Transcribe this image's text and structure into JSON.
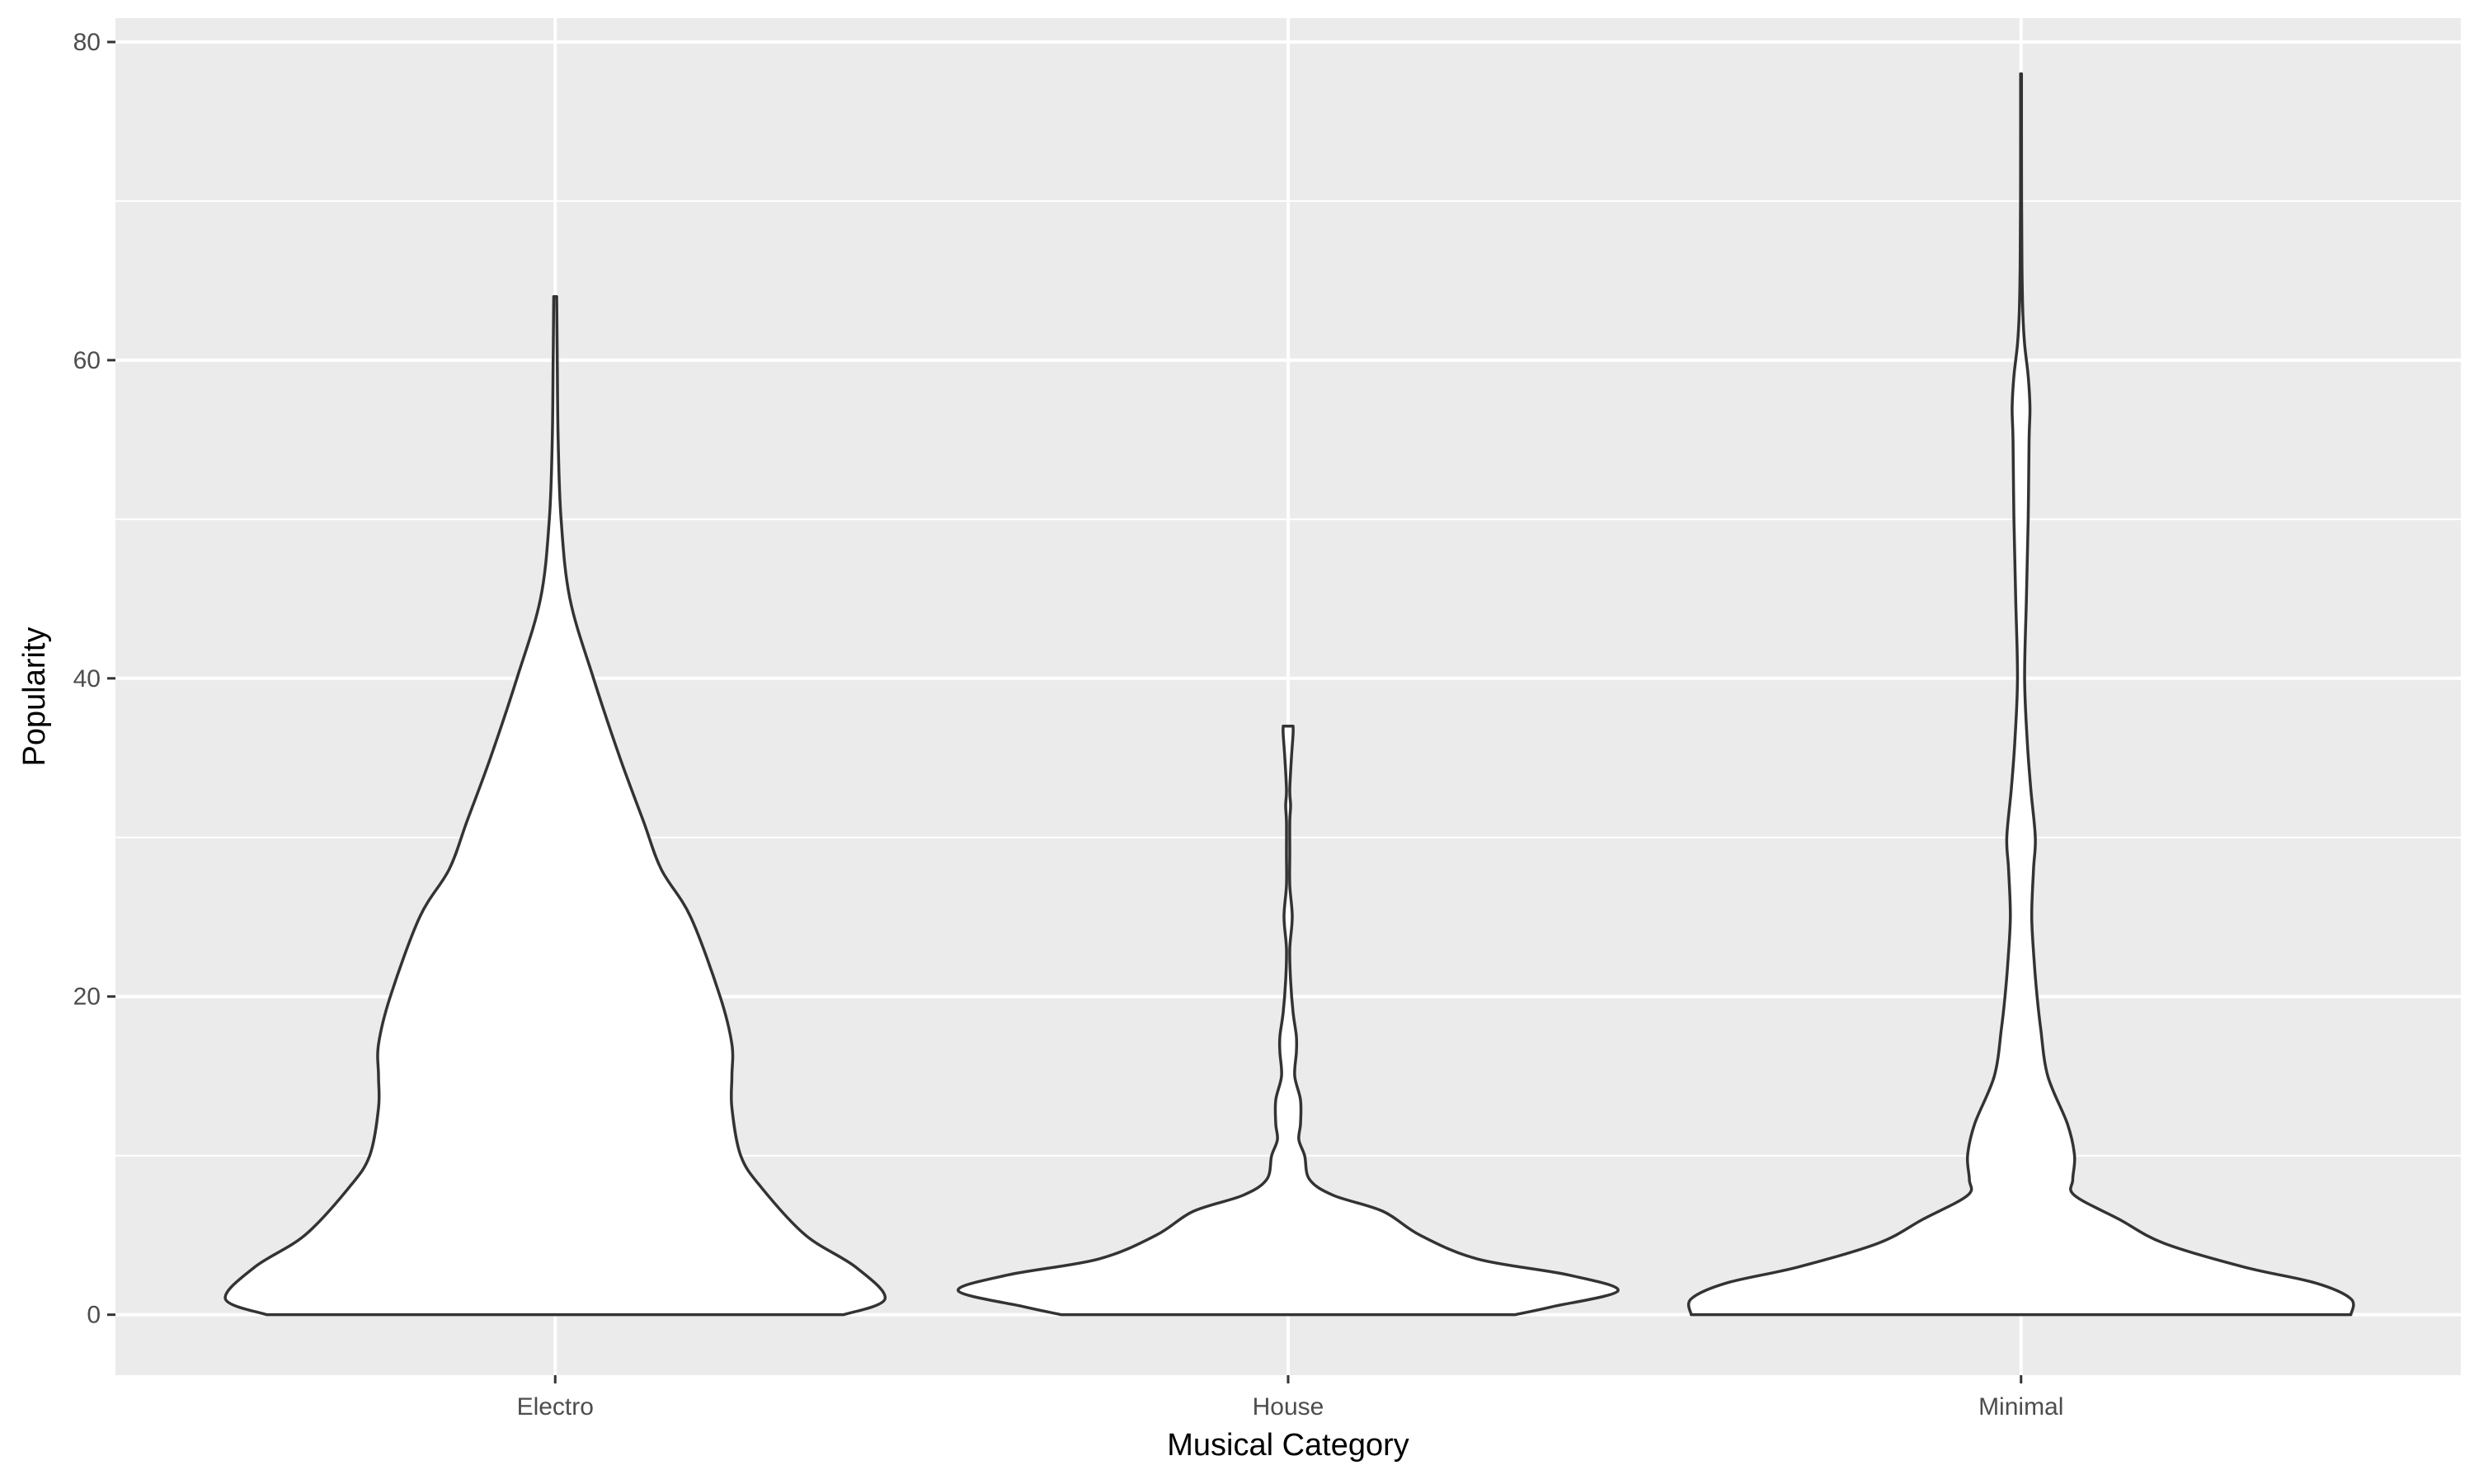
{
  "chart_data": {
    "type": "violin",
    "title": "",
    "xlabel": "Musical Category",
    "ylabel": "Popularity",
    "categories": [
      "Electro",
      "House",
      "Minimal"
    ],
    "ylim": [
      -3.8,
      81.5
    ],
    "yticks": [
      0,
      20,
      40,
      60,
      80
    ],
    "grid": true,
    "legend": "none",
    "colors": {
      "panel_background": "#ebebeb",
      "grid_line": "#ffffff",
      "violin_fill": "#ffffff",
      "violin_outline": "#333333",
      "tick_text": "#4d4d4d",
      "axis_tick": "#333333",
      "axis_title_text": "#000000"
    },
    "series": [
      {
        "category": "Electro",
        "range": [
          0,
          64
        ],
        "density_profile": [
          [
            0,
            0.098
          ],
          [
            1,
            0.112
          ],
          [
            3,
            0.102
          ],
          [
            5,
            0.085
          ],
          [
            8,
            0.07
          ],
          [
            10,
            0.063
          ],
          [
            13,
            0.06
          ],
          [
            15,
            0.06
          ],
          [
            17,
            0.06
          ],
          [
            20,
            0.056
          ],
          [
            25,
            0.046
          ],
          [
            28,
            0.036
          ],
          [
            31,
            0.03
          ],
          [
            35,
            0.022
          ],
          [
            40,
            0.013
          ],
          [
            45,
            0.005
          ],
          [
            50,
            0.002
          ],
          [
            55,
            0.001
          ],
          [
            60,
            0.0007
          ],
          [
            64,
            0.0005
          ]
        ]
      },
      {
        "category": "House",
        "range": [
          0,
          37
        ],
        "density_profile": [
          [
            0,
            0.55
          ],
          [
            0.5,
            0.64
          ],
          [
            1.5,
            0.8
          ],
          [
            2.5,
            0.68
          ],
          [
            3.5,
            0.46
          ],
          [
            5,
            0.32
          ],
          [
            6.5,
            0.23
          ],
          [
            7.5,
            0.11
          ],
          [
            8.5,
            0.052
          ],
          [
            10,
            0.04
          ],
          [
            11,
            0.026
          ],
          [
            12,
            0.03
          ],
          [
            13.5,
            0.03
          ],
          [
            15,
            0.016
          ],
          [
            16.5,
            0.02
          ],
          [
            17.5,
            0.02
          ],
          [
            19,
            0.012
          ],
          [
            21,
            0.006
          ],
          [
            23,
            0.004
          ],
          [
            25,
            0.01
          ],
          [
            27,
            0.004
          ],
          [
            29,
            0.004
          ],
          [
            31,
            0.004
          ],
          [
            32,
            0.006
          ],
          [
            33,
            0.004
          ],
          [
            35,
            0.008
          ],
          [
            36.5,
            0.012
          ],
          [
            37,
            0.012
          ]
        ]
      },
      {
        "category": "Minimal",
        "range": [
          0,
          78
        ],
        "density_profile": [
          [
            0,
            0.37
          ],
          [
            1,
            0.37
          ],
          [
            2,
            0.33
          ],
          [
            3,
            0.25
          ],
          [
            4.5,
            0.16
          ],
          [
            6,
            0.11
          ],
          [
            7.5,
            0.06
          ],
          [
            8.5,
            0.058
          ],
          [
            10,
            0.06
          ],
          [
            12,
            0.052
          ],
          [
            15,
            0.03
          ],
          [
            18,
            0.022
          ],
          [
            20,
            0.018
          ],
          [
            22,
            0.015
          ],
          [
            25,
            0.012
          ],
          [
            28,
            0.014
          ],
          [
            30,
            0.016
          ],
          [
            33,
            0.011
          ],
          [
            36,
            0.007
          ],
          [
            40,
            0.004
          ],
          [
            45,
            0.006
          ],
          [
            50,
            0.008
          ],
          [
            55,
            0.009
          ],
          [
            57,
            0.01
          ],
          [
            59,
            0.008
          ],
          [
            61,
            0.004
          ],
          [
            63,
            0.002
          ],
          [
            66,
            0.001
          ],
          [
            70,
            0.0006
          ],
          [
            75,
            0.0005
          ],
          [
            78,
            0.0005
          ]
        ]
      }
    ]
  }
}
